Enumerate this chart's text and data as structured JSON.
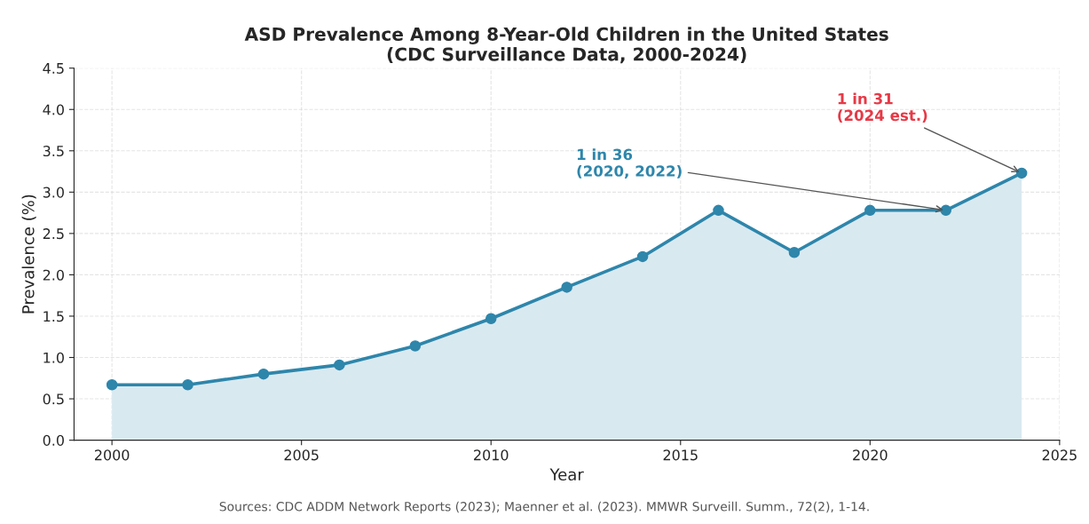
{
  "chart_data": {
    "type": "area",
    "title": "ASD Prevalence Among 8-Year-Old Children in the United States\n(CDC Surveillance Data, 2000-2024)",
    "xlabel": "Year",
    "ylabel": "Prevalence (%)",
    "x": [
      2000,
      2002,
      2004,
      2006,
      2008,
      2010,
      2012,
      2014,
      2016,
      2018,
      2020,
      2022,
      2024
    ],
    "series": [
      {
        "color": "#2e86ab",
        "values": [
          0.67,
          0.67,
          0.8,
          0.91,
          1.14,
          1.47,
          1.85,
          2.22,
          2.78,
          2.27,
          2.78,
          2.78,
          3.23
        ]
      }
    ],
    "xlim": [
      1999,
      2025
    ],
    "xticks": [
      2000,
      2005,
      2010,
      2015,
      2020,
      2025
    ],
    "ylim": [
      0,
      4.5
    ],
    "yticks": [
      {
        "value": 0,
        "label": "0.0"
      },
      {
        "value": 0.5,
        "label": "0.5"
      },
      {
        "value": 1,
        "label": "1.0"
      },
      {
        "value": 1.5,
        "label": "1.5"
      },
      {
        "value": 2,
        "label": "2.0"
      },
      {
        "value": 2.5,
        "label": "2.5"
      },
      {
        "value": 3,
        "label": "3.0"
      },
      {
        "value": 3.5,
        "label": "3.5"
      },
      {
        "value": 4,
        "label": "4.0"
      },
      {
        "value": 4.5,
        "label": "4.5"
      }
    ],
    "grid": true,
    "marker": "circle",
    "line_style": "solid",
    "annotations": [
      {
        "text": "1 in 36\n(2020, 2022)",
        "x": 2022,
        "y": 2.78
      },
      {
        "text": "1 in 31\n(2024 est.)",
        "x": 2024,
        "y": 3.23
      },
      "Sources: CDC ADDM Network Reports (2023); Maenner et al. (2023). MMWR Surveill. Summ., 72(2), 1-14."
    ]
  }
}
